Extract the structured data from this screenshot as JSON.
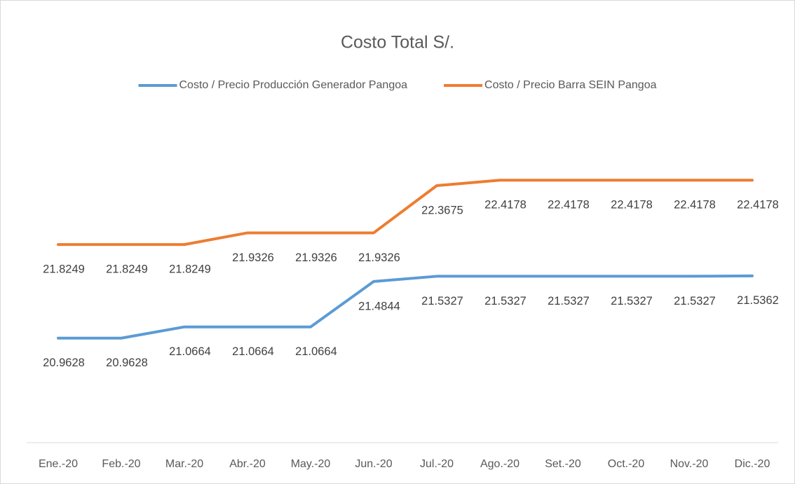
{
  "chart_data": {
    "type": "line",
    "title": "Costo Total S/.",
    "categories": [
      "Ene.-20",
      "Feb.-20",
      "Mar.-20",
      "Abr.-20",
      "May.-20",
      "Jun.-20",
      "Jul.-20",
      "Ago.-20",
      "Set.-20",
      "Oct.-20",
      "Nov.-20",
      "Dic.-20"
    ],
    "series": [
      {
        "name": "Costo / Precio Producción Generador Pangoa",
        "color": "#5b9bd5",
        "values": [
          20.9628,
          20.9628,
          21.0664,
          21.0664,
          21.0664,
          21.4844,
          21.5327,
          21.5327,
          21.5327,
          21.5327,
          21.5327,
          21.5362
        ]
      },
      {
        "name": "Costo / Precio Barra SEIN Pangoa",
        "color": "#ed7d31",
        "values": [
          21.8249,
          21.8249,
          21.8249,
          21.9326,
          21.9326,
          21.9326,
          22.3675,
          22.4178,
          22.4178,
          22.4178,
          22.4178,
          22.4178
        ]
      }
    ],
    "ylim": [
      20,
      23
    ],
    "legend": "top",
    "grid": false,
    "data_labels": true
  }
}
